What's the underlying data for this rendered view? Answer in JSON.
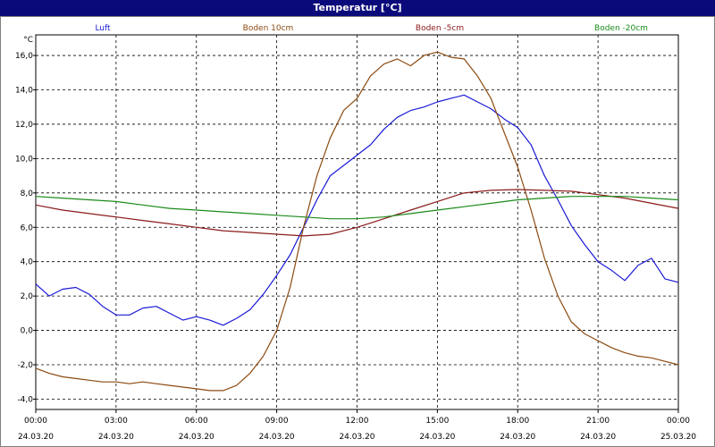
{
  "window": {
    "title": "Temperatur [°C]"
  },
  "colors": {
    "titlebar": "#0a0a7a",
    "luft": "#1a1ad6",
    "boden10": "#8b4a10",
    "boden5": "#8b1a1a",
    "boden20": "#1a8b1a",
    "grid": "#000000"
  },
  "chart_data": {
    "type": "line",
    "title": "Temperatur [°C]",
    "ylabel": "°C",
    "xlabel": "",
    "ylim": [
      -4.6,
      17.2
    ],
    "xlim": [
      0,
      24
    ],
    "grid": true,
    "legend_position": "top",
    "y_ticks": [
      "16,0",
      "14,0",
      "12,0",
      "10,0",
      "8,0",
      "6,0",
      "4,0",
      "2,0",
      "0,0",
      "-2,0",
      "-4,0"
    ],
    "y_tick_values": [
      16,
      14,
      12,
      10,
      8,
      6,
      4,
      2,
      0,
      -2,
      -4
    ],
    "x_ticks": [
      {
        "time": "00:00",
        "date": "24.03.20"
      },
      {
        "time": "03:00",
        "date": "24.03.20"
      },
      {
        "time": "06:00",
        "date": "24.03.20"
      },
      {
        "time": "09:00",
        "date": "24.03.20"
      },
      {
        "time": "12:00",
        "date": "24.03.20"
      },
      {
        "time": "15:00",
        "date": "24.03.20"
      },
      {
        "time": "18:00",
        "date": "24.03.20"
      },
      {
        "time": "21:00",
        "date": "24.03.20"
      },
      {
        "time": "00:00",
        "date": "25.03.20"
      }
    ],
    "x_tick_hours": [
      0,
      3,
      6,
      9,
      12,
      15,
      18,
      21,
      24
    ],
    "series": [
      {
        "name": "Luft",
        "color": "#1a1ad6",
        "x": [
          0,
          0.5,
          1,
          1.5,
          2,
          2.5,
          3,
          3.5,
          4,
          4.5,
          5,
          5.5,
          6,
          6.5,
          7,
          7.5,
          8,
          8.5,
          9,
          9.5,
          10,
          10.5,
          11,
          11.5,
          12,
          12.5,
          13,
          13.5,
          14,
          14.5,
          15,
          15.5,
          16,
          16.5,
          17,
          17.5,
          18,
          18.5,
          19,
          19.5,
          20,
          20.5,
          21,
          21.5,
          22,
          22.5,
          23,
          23.5,
          24
        ],
        "values": [
          2.7,
          2.0,
          2.4,
          2.5,
          2.1,
          1.4,
          0.9,
          0.9,
          1.3,
          1.4,
          1.0,
          0.6,
          0.8,
          0.6,
          0.3,
          0.7,
          1.2,
          2.1,
          3.2,
          4.4,
          6.0,
          7.6,
          9.0,
          9.6,
          10.2,
          10.8,
          11.7,
          12.4,
          12.8,
          13.0,
          13.3,
          13.5,
          13.7,
          13.3,
          12.9,
          12.3,
          11.8,
          10.8,
          9.0,
          7.6,
          6.1,
          5.0,
          4.0,
          3.5,
          2.9,
          3.8,
          4.2,
          3.0,
          2.8
        ]
      },
      {
        "name": "Boden 10cm",
        "color": "#8b4a10",
        "x": [
          0,
          0.5,
          1,
          1.5,
          2,
          2.5,
          3,
          3.5,
          4,
          4.5,
          5,
          5.5,
          6,
          6.5,
          7,
          7.5,
          8,
          8.5,
          9,
          9.5,
          10,
          10.5,
          11,
          11.5,
          12,
          12.5,
          13,
          13.5,
          14,
          14.5,
          15,
          15.5,
          16,
          16.5,
          17,
          17.5,
          18,
          18.5,
          19,
          19.5,
          20,
          20.5,
          21,
          21.5,
          22,
          22.5,
          23,
          23.5,
          24
        ],
        "values": [
          -2.2,
          -2.5,
          -2.7,
          -2.8,
          -2.9,
          -3.0,
          -3.0,
          -3.1,
          -3.0,
          -3.1,
          -3.2,
          -3.3,
          -3.4,
          -3.5,
          -3.5,
          -3.2,
          -2.5,
          -1.5,
          0.0,
          2.5,
          6.0,
          9.0,
          11.2,
          12.8,
          13.5,
          14.8,
          15.5,
          15.8,
          15.4,
          16.0,
          16.2,
          15.9,
          15.8,
          14.8,
          13.5,
          11.5,
          9.5,
          7.0,
          4.2,
          2.0,
          0.5,
          -0.2,
          -0.6,
          -1.0,
          -1.3,
          -1.5,
          -1.6,
          -1.8,
          -2.0
        ]
      },
      {
        "name": "Boden -5cm",
        "color": "#8b1a1a",
        "x": [
          0,
          1,
          2,
          3,
          4,
          5,
          6,
          7,
          8,
          9,
          10,
          11,
          12,
          13,
          14,
          15,
          16,
          17,
          18,
          19,
          20,
          21,
          22,
          23,
          24
        ],
        "values": [
          7.3,
          7.0,
          6.8,
          6.6,
          6.4,
          6.2,
          6.0,
          5.8,
          5.7,
          5.6,
          5.5,
          5.6,
          6.0,
          6.5,
          7.0,
          7.5,
          8.0,
          8.15,
          8.2,
          8.15,
          8.1,
          7.9,
          7.7,
          7.4,
          7.1
        ]
      },
      {
        "name": "Boden -20cm",
        "color": "#1a8b1a",
        "x": [
          0,
          1,
          2,
          3,
          4,
          5,
          6,
          7,
          8,
          9,
          10,
          11,
          12,
          13,
          14,
          15,
          16,
          17,
          18,
          19,
          20,
          21,
          22,
          23,
          24
        ],
        "values": [
          7.8,
          7.7,
          7.6,
          7.5,
          7.3,
          7.1,
          7.0,
          6.9,
          6.8,
          6.7,
          6.6,
          6.5,
          6.5,
          6.6,
          6.8,
          7.0,
          7.2,
          7.4,
          7.6,
          7.7,
          7.8,
          7.8,
          7.8,
          7.7,
          7.6
        ]
      }
    ]
  }
}
